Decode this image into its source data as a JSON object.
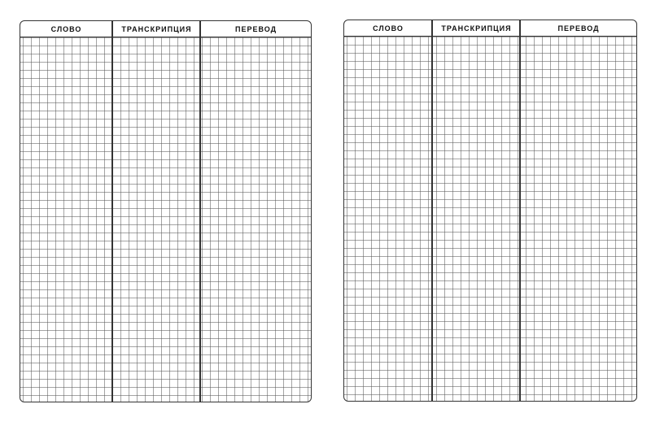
{
  "pages": [
    {
      "columns": [
        "СЛОВО",
        "ТРАНСКРИПЦИЯ",
        "ПЕРЕВОД"
      ]
    },
    {
      "columns": [
        "СЛОВО",
        "ТРАНСКРИПЦИЯ",
        "ПЕРЕВОД"
      ]
    }
  ],
  "colors": {
    "line": "#333333",
    "grid": "#8c8c8c",
    "paper": "#ffffff"
  }
}
